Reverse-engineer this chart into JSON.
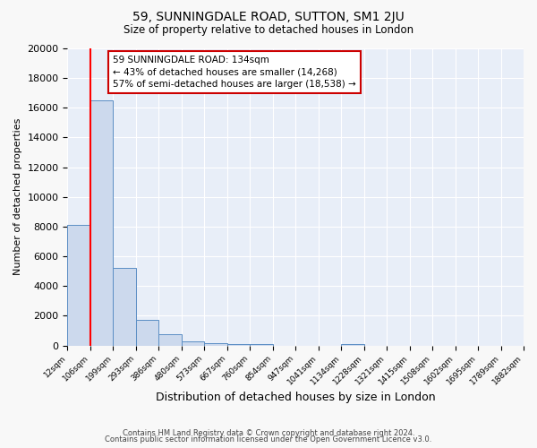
{
  "title": "59, SUNNINGDALE ROAD, SUTTON, SM1 2JU",
  "subtitle": "Size of property relative to detached houses in London",
  "xlabel": "Distribution of detached houses by size in London",
  "ylabel": "Number of detached properties",
  "bar_color": "#ccd9ed",
  "bar_edge_color": "#5b8ec4",
  "background_color": "#e8eef8",
  "grid_color": "#ffffff",
  "annotation_text": "59 SUNNINGDALE ROAD: 134sqm\n← 43% of detached houses are smaller (14,268)\n57% of semi-detached houses are larger (18,538) →",
  "red_line_bin_index": 1,
  "bin_labels": [
    "12sqm",
    "106sqm",
    "199sqm",
    "293sqm",
    "386sqm",
    "480sqm",
    "573sqm",
    "667sqm",
    "760sqm",
    "854sqm",
    "947sqm",
    "1041sqm",
    "1134sqm",
    "1228sqm",
    "1321sqm",
    "1415sqm",
    "1508sqm",
    "1602sqm",
    "1695sqm",
    "1789sqm",
    "1882sqm"
  ],
  "bar_heights": [
    8100,
    16500,
    5200,
    1750,
    750,
    300,
    170,
    120,
    70,
    0,
    0,
    0,
    100,
    0,
    0,
    0,
    0,
    0,
    0,
    0
  ],
  "ylim": [
    0,
    20000
  ],
  "yticks": [
    0,
    2000,
    4000,
    6000,
    8000,
    10000,
    12000,
    14000,
    16000,
    18000,
    20000
  ],
  "fig_width": 6.0,
  "fig_height": 5.0,
  "fig_bg": "#f8f8f8",
  "footer_line1": "Contains HM Land Registry data © Crown copyright and database right 2024.",
  "footer_line2": "Contains public sector information licensed under the Open Government Licence v3.0."
}
